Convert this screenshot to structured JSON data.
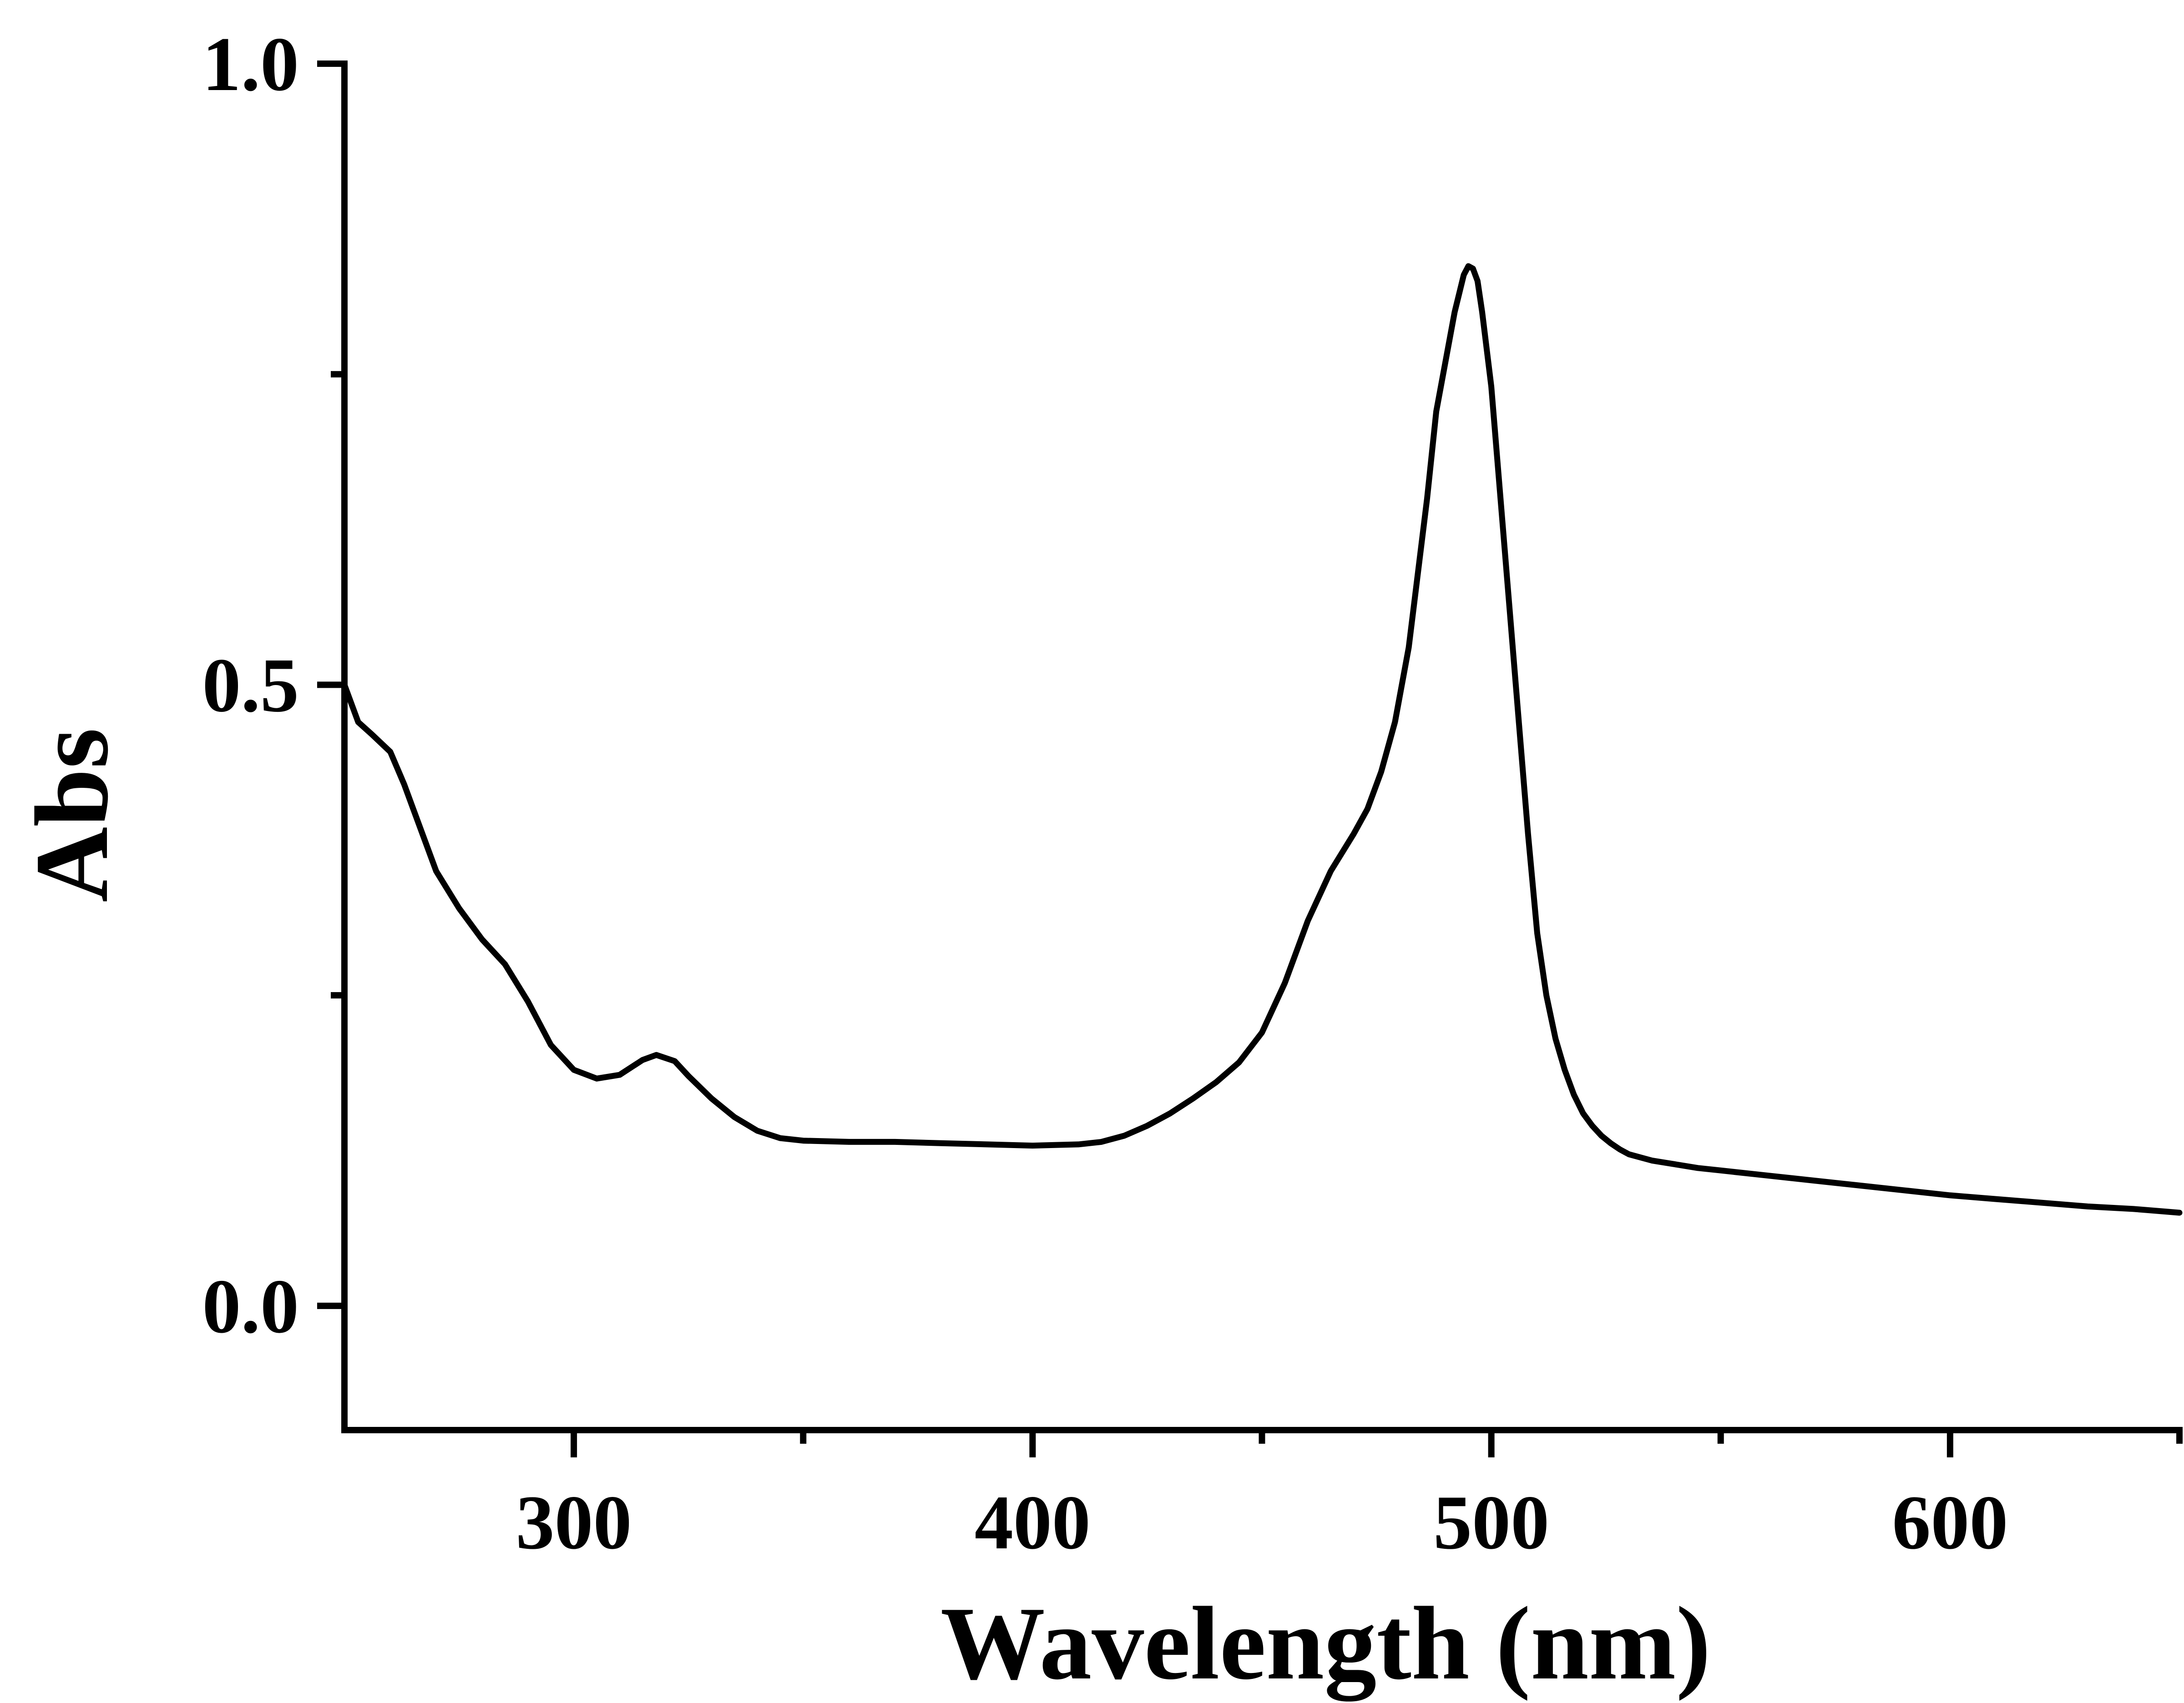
{
  "chart_data": {
    "type": "line",
    "title": "",
    "xlabel": "Wavelength (nm)",
    "ylabel": "Abs",
    "xlim": [
      250,
      650
    ],
    "ylim": [
      -0.1,
      1.0
    ],
    "xticks": [
      {
        "value": 300,
        "label": "300"
      },
      {
        "value": 400,
        "label": "400"
      },
      {
        "value": 500,
        "label": "500"
      },
      {
        "value": 600,
        "label": "600"
      }
    ],
    "x_minor_ticks": [
      350,
      450,
      550,
      650
    ],
    "yticks": [
      {
        "value": 0.0,
        "label": "0.0"
      },
      {
        "value": 0.5,
        "label": "0.5"
      },
      {
        "value": 1.0,
        "label": "1.0"
      }
    ],
    "y_minor_ticks": [
      0.25,
      0.75
    ],
    "grid": false,
    "line_color": "#000000",
    "series": [
      {
        "x": [
          250,
          253,
          256,
          260,
          263,
          265,
          270,
          275,
          280,
          285,
          290,
          295,
          300,
          305,
          310,
          315,
          318,
          322,
          325,
          330,
          335,
          340,
          345,
          350,
          360,
          370,
          380,
          390,
          400,
          410,
          415,
          420,
          425,
          430,
          435,
          440,
          445,
          450,
          455,
          460,
          465,
          470,
          473,
          476,
          479,
          482,
          484,
          486,
          488,
          490,
          492,
          494,
          495,
          496,
          497,
          498,
          500,
          502,
          504,
          506,
          508,
          510,
          512,
          514,
          516,
          518,
          520,
          522,
          524,
          526,
          528,
          530,
          535,
          540,
          545,
          550,
          560,
          570,
          580,
          590,
          600,
          610,
          620,
          630,
          640,
          650
        ],
        "y": [
          0.5,
          0.47,
          0.46,
          0.446,
          0.42,
          0.4,
          0.35,
          0.32,
          0.295,
          0.275,
          0.245,
          0.21,
          0.19,
          0.183,
          0.186,
          0.198,
          0.202,
          0.197,
          0.185,
          0.167,
          0.152,
          0.141,
          0.135,
          0.133,
          0.132,
          0.132,
          0.131,
          0.13,
          0.129,
          0.13,
          0.132,
          0.137,
          0.145,
          0.155,
          0.167,
          0.18,
          0.196,
          0.22,
          0.26,
          0.31,
          0.35,
          0.38,
          0.4,
          0.43,
          0.47,
          0.53,
          0.59,
          0.65,
          0.72,
          0.76,
          0.8,
          0.83,
          0.837,
          0.835,
          0.825,
          0.8,
          0.74,
          0.65,
          0.56,
          0.47,
          0.38,
          0.3,
          0.25,
          0.215,
          0.19,
          0.17,
          0.155,
          0.145,
          0.137,
          0.131,
          0.126,
          0.122,
          0.117,
          0.114,
          0.111,
          0.109,
          0.105,
          0.101,
          0.097,
          0.093,
          0.089,
          0.086,
          0.083,
          0.08,
          0.078,
          0.075
        ]
      }
    ]
  }
}
